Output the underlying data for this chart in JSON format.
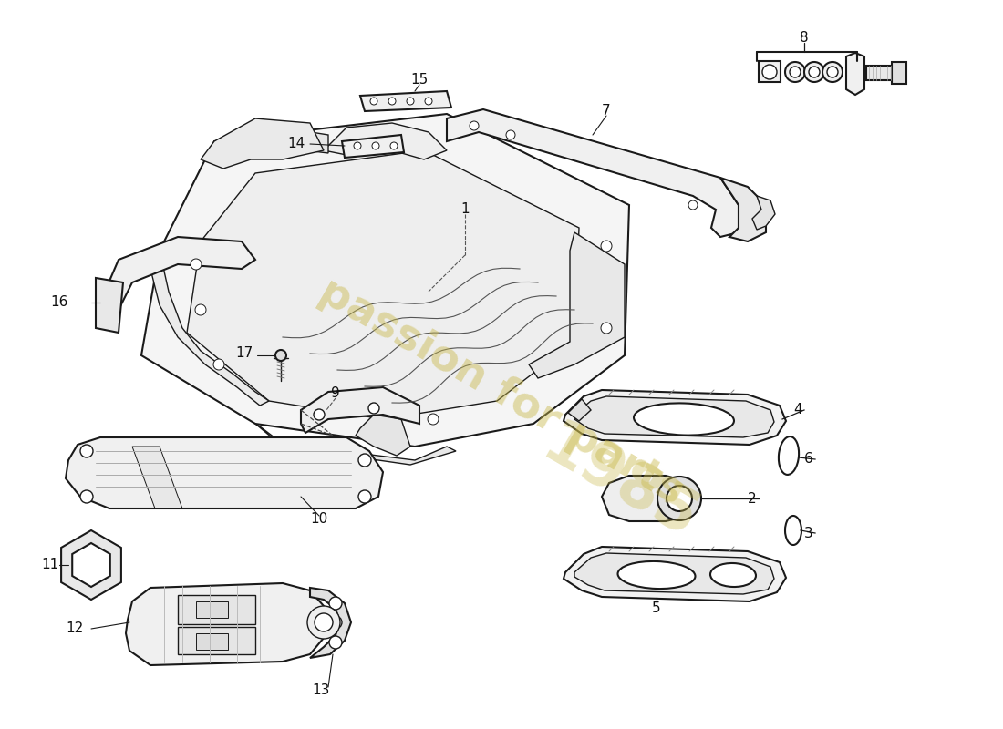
{
  "background_color": "#ffffff",
  "line_color": "#1a1a1a",
  "fill_color": "#f8f8f8",
  "label_fontsize": 11,
  "watermark_color": "#c8b84a",
  "watermark_text": "passion for parts",
  "watermark_year": "1985"
}
